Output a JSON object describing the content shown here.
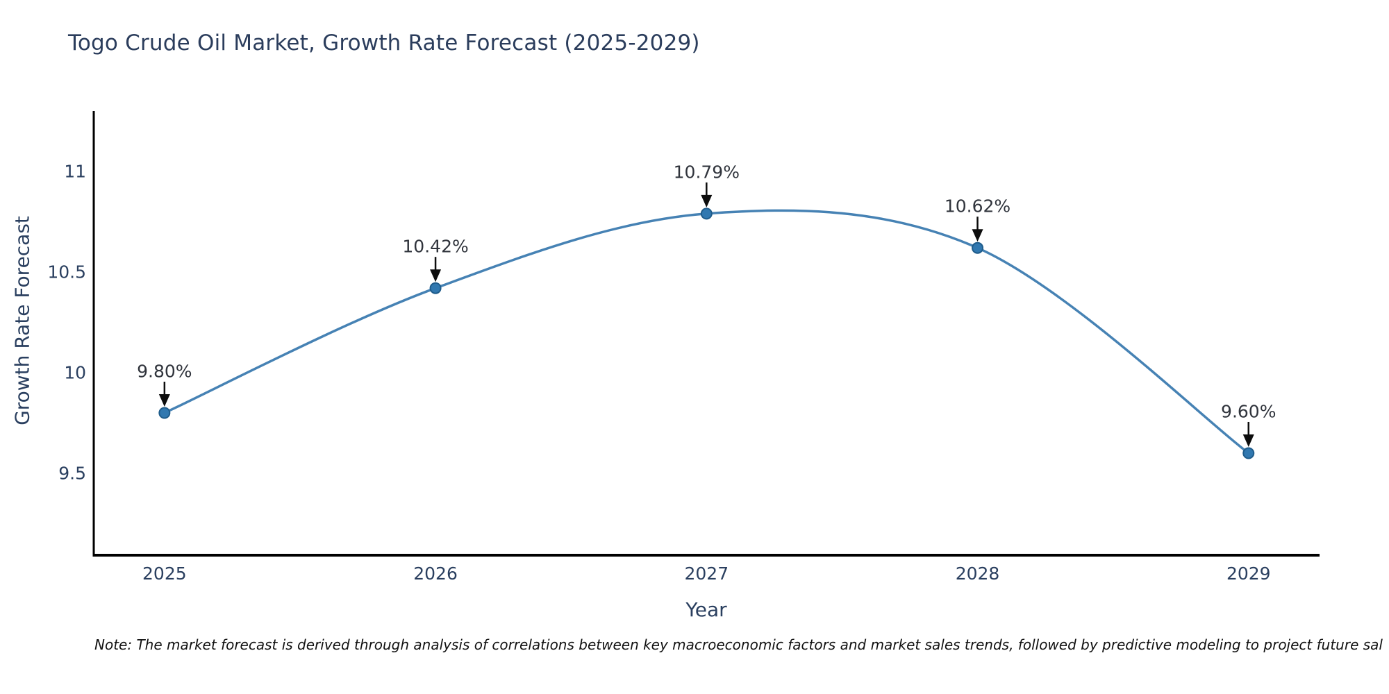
{
  "title": "Togo Crude Oil Market, Growth Rate Forecast (2025-2029)",
  "note": "Note: The market forecast is derived through analysis of correlations between key macroeconomic factors and market sales trends, followed by predictive modeling to project future sal",
  "chart_data": {
    "type": "line",
    "title": "Togo Crude Oil Market, Growth Rate Forecast (2025-2029)",
    "xlabel": "Year",
    "ylabel": "Growth Rate Forecast",
    "x": [
      2025,
      2026,
      2027,
      2028,
      2029
    ],
    "series": [
      {
        "name": "Growth Rate Forecast",
        "values": [
          9.8,
          10.42,
          10.79,
          10.62,
          9.6
        ],
        "point_labels": [
          "9.80%",
          "10.42%",
          "10.79%",
          "10.62%",
          "9.60%"
        ]
      }
    ],
    "x_tick_labels": [
      "2025",
      "2026",
      "2027",
      "2028",
      "2029"
    ],
    "y_ticks": [
      9.5,
      10,
      10.5,
      11
    ],
    "y_tick_labels": [
      "9.5",
      "10",
      "10.5",
      "11"
    ],
    "xlim": [
      2024.739,
      2029.262
    ],
    "ylim": [
      9.093,
      11.3
    ],
    "line_shape": "spline",
    "grid": "off",
    "legend": "none",
    "colors": {
      "line": "#4682b4",
      "marker_fill": "#3178b0",
      "marker_edge": "#1f5c8b",
      "arrow": "#0d0d0d",
      "axis_spine": "#000000",
      "text": "#2a3f5f",
      "background": "#ffffff"
    }
  }
}
